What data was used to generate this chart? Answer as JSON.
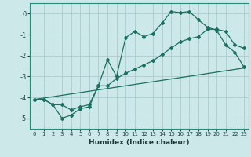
{
  "xlabel": "Humidex (Indice chaleur)",
  "background_color": "#cce8e8",
  "grid_color": "#aacccc",
  "line_color": "#1a7060",
  "xlim": [
    -0.5,
    23.5
  ],
  "ylim": [
    -5.5,
    0.5
  ],
  "yticks": [
    0,
    -1,
    -2,
    -3,
    -4,
    -5
  ],
  "xticks": [
    0,
    1,
    2,
    3,
    4,
    5,
    6,
    7,
    8,
    9,
    10,
    11,
    12,
    13,
    14,
    15,
    16,
    17,
    18,
    19,
    20,
    21,
    22,
    23
  ],
  "line1_x": [
    0,
    1,
    2,
    3,
    4,
    5,
    6,
    7,
    8,
    9,
    10,
    11,
    12,
    13,
    14,
    15,
    16,
    17,
    18,
    19,
    20,
    21,
    22,
    23
  ],
  "line1_y": [
    -4.1,
    -4.1,
    -4.35,
    -5.0,
    -4.85,
    -4.55,
    -4.45,
    -3.45,
    -2.2,
    -3.0,
    -1.15,
    -0.85,
    -1.1,
    -0.95,
    -0.45,
    0.1,
    0.05,
    0.1,
    -0.3,
    -0.65,
    -0.8,
    -1.5,
    -1.85,
    -2.55
  ],
  "line2_x": [
    0,
    1,
    2,
    3,
    4,
    5,
    6,
    7,
    8,
    9,
    10,
    11,
    12,
    13,
    14,
    15,
    16,
    17,
    18,
    19,
    20,
    21,
    22,
    23
  ],
  "line2_y": [
    -4.1,
    -4.1,
    -4.35,
    -4.35,
    -4.6,
    -4.45,
    -4.35,
    -3.45,
    -3.45,
    -3.1,
    -2.85,
    -2.65,
    -2.45,
    -2.25,
    -1.95,
    -1.65,
    -1.35,
    -1.2,
    -1.1,
    -0.75,
    -0.75,
    -0.85,
    -1.5,
    -1.65
  ],
  "line3_x": [
    0,
    23
  ],
  "line3_y": [
    -4.1,
    -2.6
  ]
}
